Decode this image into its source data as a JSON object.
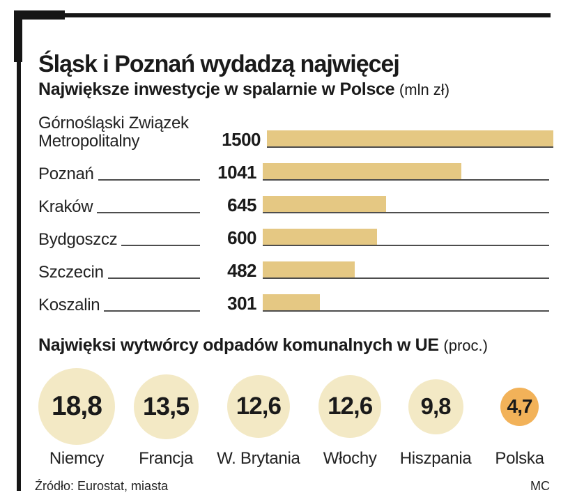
{
  "title": "Śląsk i Poznań wydadzą najwięcej",
  "footer": {
    "source": "Źródło: Eurostat, miasta",
    "credit": "MC"
  },
  "colors": {
    "frame": "#161616",
    "bar": "#e5c883",
    "baseline": "#4d4d4d",
    "circle": "#f3e9c5",
    "circle_highlight": "#f2b259",
    "text": "#1a1a1a"
  },
  "chart_data": [
    {
      "type": "bar",
      "orientation": "horizontal",
      "title": "Największe inwestycje w spalarnie w Polsce",
      "unit_label": "(mln zł)",
      "categories": [
        "Górnośląski Związek Metropolitalny",
        "Poznań",
        "Kraków",
        "Bydgoszcz",
        "Szczecin",
        "Koszalin"
      ],
      "values": [
        1500,
        1041,
        645,
        600,
        482,
        301
      ],
      "value_labels": [
        "1500",
        "1041",
        "645",
        "600",
        "482",
        "301"
      ],
      "xlim": [
        0,
        1500
      ],
      "grid": false,
      "legend": false,
      "bar_color": "#e5c883"
    },
    {
      "type": "pie",
      "variant": "proportional-circles",
      "title": "Najwięksi wytwórcy odpadów komunalnych w UE",
      "unit_label": "(proc.)",
      "categories": [
        "Niemcy",
        "Francja",
        "W. Brytania",
        "Włochy",
        "Hiszpania",
        "Polska"
      ],
      "values": [
        18.8,
        13.5,
        12.6,
        12.6,
        9.8,
        4.7
      ],
      "value_labels": [
        "18,8",
        "13,5",
        "12,6",
        "12,6",
        "9,8",
        "4,7"
      ],
      "highlighted_category": "Polska",
      "circle_color": "#f3e9c5",
      "highlight_color": "#f2b259",
      "legend": false
    }
  ]
}
